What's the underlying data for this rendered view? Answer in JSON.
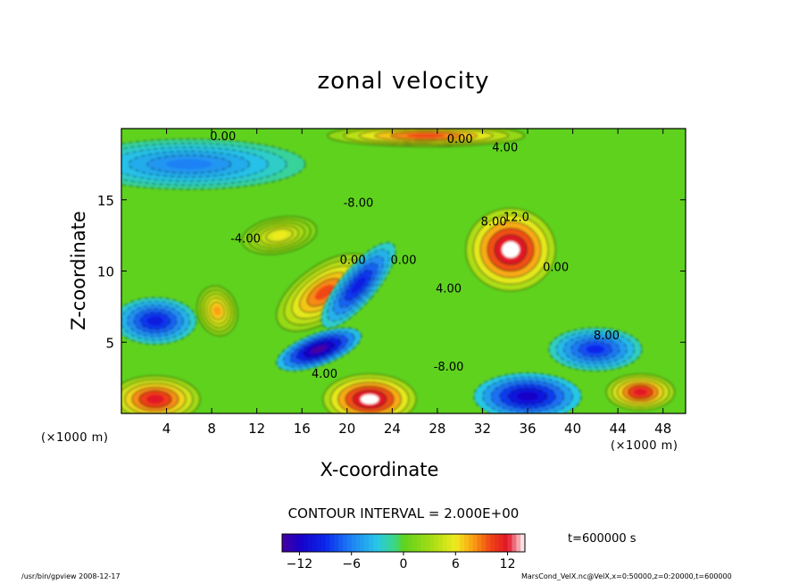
{
  "chart_data": {
    "type": "heatmap",
    "title": "zonal velocity",
    "xlabel": "X-coordinate",
    "ylabel": "Z-coordinate",
    "x_unit": "(×1000 m)",
    "xlim": [
      0,
      50
    ],
    "ylim": [
      0,
      20
    ],
    "x_ticks": [
      4,
      8,
      12,
      16,
      20,
      24,
      28,
      32,
      36,
      40,
      44,
      48
    ],
    "y_ticks": [
      5,
      10,
      15
    ],
    "contour_interval_label": "CONTOUR INTERVAL = 2.000E+00",
    "colorbar": {
      "range": [
        -14,
        14
      ],
      "ticks": [
        -12,
        -6,
        0,
        6,
        12
      ]
    },
    "contour_labels": [
      "0.00",
      "4.00",
      "-8.00",
      "8.00",
      "12.0",
      "0.00",
      "4.00",
      "0.00",
      "-8.00",
      "4.00",
      "0.00",
      "-4.00",
      "0.00",
      "8.00"
    ],
    "features": [
      {
        "x": 18,
        "z": 8.5,
        "value": 10
      },
      {
        "x": 14,
        "z": 12.5,
        "value": 6
      },
      {
        "x": 8.5,
        "z": 7.2,
        "value": 8
      },
      {
        "x": 21,
        "z": 9,
        "value": -10
      },
      {
        "x": 17.5,
        "z": 4.5,
        "value": -14
      },
      {
        "x": 34.5,
        "z": 11.5,
        "value": 14
      },
      {
        "x": 3,
        "z": 6.5,
        "value": -10
      },
      {
        "x": 42,
        "z": 4.5,
        "value": -9
      },
      {
        "x": 36,
        "z": 1.2,
        "value": -12
      },
      {
        "x": 22,
        "z": 1,
        "value": 14
      },
      {
        "x": 3,
        "z": 1,
        "value": 12
      },
      {
        "x": 46,
        "z": 1.5,
        "value": 12
      },
      {
        "x": 27,
        "z": 19.5,
        "value": 10
      },
      {
        "x": 6,
        "z": 17.5,
        "value": -6
      }
    ]
  },
  "time_label": "t=600000 s",
  "footer": {
    "left": "/usr/bin/gpview   2008-12-17",
    "right": "MarsCond_VelX.nc@VelX,x=0:50000,z=0:20000,t=600000"
  }
}
